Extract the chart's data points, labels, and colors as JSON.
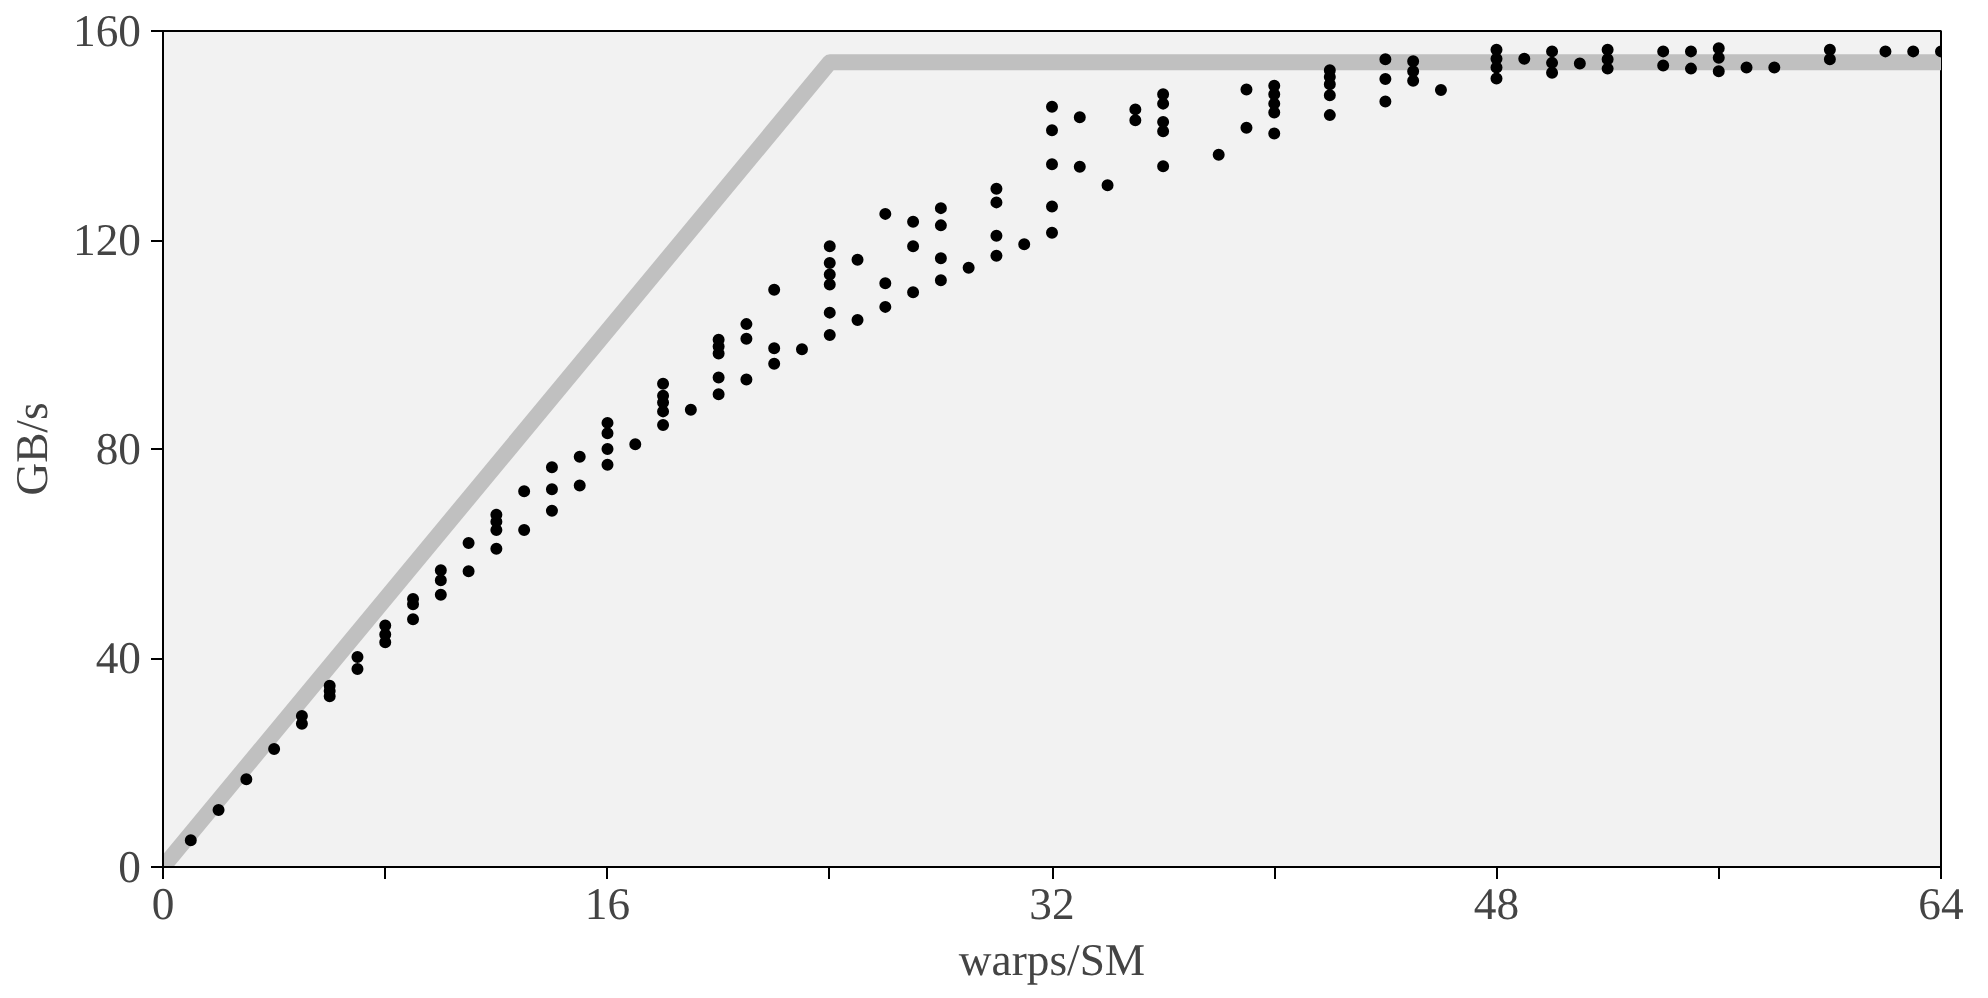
{
  "chart_data": {
    "type": "scatter",
    "xlabel": "warps/SM",
    "ylabel": "GB/s",
    "xlim": [
      0,
      64
    ],
    "ylim": [
      0,
      160
    ],
    "xticks": [
      0,
      {
        "value": 8,
        "label": null
      },
      16,
      {
        "value": 24,
        "label": null
      },
      32,
      {
        "value": 40,
        "label": null
      },
      48,
      {
        "value": 56,
        "label": null
      },
      64
    ],
    "yticks": [
      0,
      40,
      80,
      120,
      160
    ],
    "grid": false,
    "series": [
      {
        "type": "line",
        "color": "#c0c0c0",
        "x": [
          0,
          24,
          64
        ],
        "values": [
          0,
          154,
          154
        ],
        "marker": "none",
        "line_style": "solid"
      },
      {
        "color": "#000000",
        "marker": "circle",
        "x": [
          1,
          2,
          3,
          4,
          5,
          5,
          6,
          6,
          6,
          7,
          7,
          8,
          8,
          8,
          9,
          9,
          9,
          10,
          10,
          10,
          11,
          11,
          12,
          12,
          12,
          12,
          13,
          13,
          14,
          14,
          14,
          15,
          15,
          16,
          16,
          16,
          16,
          17,
          18,
          18,
          18,
          18,
          18,
          19,
          20,
          20,
          20,
          20,
          20,
          21,
          21,
          21,
          22,
          22,
          22,
          23,
          24,
          24,
          24,
          24,
          24,
          24,
          25,
          25,
          26,
          26,
          26,
          27,
          27,
          27,
          28,
          28,
          28,
          28,
          29,
          30,
          30,
          30,
          30,
          31,
          32,
          32,
          32,
          32,
          32,
          33,
          33,
          34,
          35,
          35,
          36,
          36,
          36,
          36,
          36,
          38,
          39,
          39,
          40,
          40,
          40,
          40,
          40,
          42,
          42,
          42,
          42,
          42,
          44,
          44,
          44,
          45,
          45,
          45,
          46,
          48,
          48,
          48,
          48,
          49,
          50,
          50,
          50,
          51,
          52,
          52,
          52,
          54,
          54,
          55,
          55,
          56,
          56,
          56,
          57,
          58,
          60,
          60,
          62,
          63,
          64
        ],
        "values": [
          5.1,
          10.9,
          16.8,
          22.6,
          28.9,
          27.4,
          34.7,
          33.7,
          32.7,
          40.2,
          37.9,
          46.2,
          44.5,
          43,
          51.3,
          50.3,
          47.4,
          56.8,
          54.9,
          52.1,
          62,
          56.6,
          67.4,
          66.1,
          64.5,
          60.9,
          71.9,
          64.5,
          76.5,
          72.3,
          68.2,
          78.5,
          73,
          85,
          83,
          80,
          77,
          80.9,
          92.5,
          90.2,
          88.9,
          87.2,
          84.6,
          87.5,
          100.9,
          99.6,
          98.3,
          93.7,
          90.5,
          103.9,
          101.1,
          93.3,
          110.5,
          99.3,
          96.3,
          99.1,
          118.8,
          115.6,
          113.4,
          111.5,
          106.1,
          101.8,
          116.2,
          104.7,
          125,
          111.7,
          107.2,
          123.5,
          118.8,
          110,
          126.1,
          122.8,
          116.5,
          112.3,
          114.7,
          129.8,
          127.2,
          120.8,
          117,
          119.2,
          145.5,
          141,
          134.5,
          126.4,
          121.4,
          143.5,
          134,
          130.5,
          145,
          142.9,
          147.9,
          146.1,
          142.6,
          140.8,
          134.1,
          136.3,
          148.8,
          141.5,
          149.5,
          147.9,
          146.1,
          144.4,
          140.4,
          152.5,
          151.2,
          149.8,
          147.7,
          143.9,
          154.6,
          150.8,
          146.5,
          154.2,
          152.3,
          150.5,
          148.7,
          156.4,
          154.7,
          153,
          150.9,
          154.7,
          156.1,
          153.9,
          152,
          153.8,
          156.4,
          154.6,
          152.8,
          156.1,
          153.4,
          156.1,
          152.8,
          156.7,
          154.9,
          152.3,
          153,
          153,
          156.4,
          154.6,
          156.1,
          156.1,
          156.1
        ]
      }
    ]
  }
}
